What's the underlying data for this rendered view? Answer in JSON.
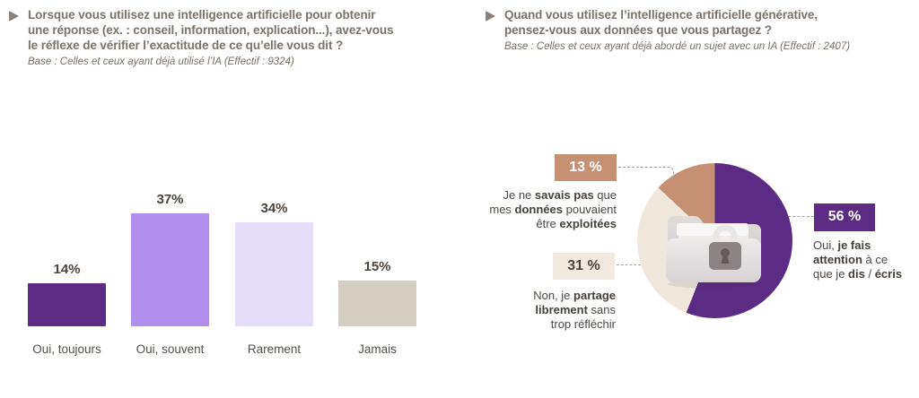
{
  "colors": {
    "purple_dark": "#5C2B84",
    "purple_medium": "#B08FEC",
    "lavender_light": "#E6DDF8",
    "beige_gray": "#D4CDC1",
    "tan": "#C59172",
    "cream": "#EFE7DB",
    "cream_badge": "#F2E9DF",
    "title_text": "#7B7268",
    "value_text": "#4B443E"
  },
  "left_panel": {
    "title": "Lorsque vous utilisez une intelligence artificielle pour obtenir\nune réponse (ex. : conseil, information, explication...), avez-vous\nle réflexe de vérifier l’exactitude de ce qu’elle vous dit  ?",
    "base_note": "Base : Celles et ceux ayant déjà utilisé l’IA (Effectif : 9324)"
  },
  "right_panel": {
    "title": "Quand vous utilisez l’intelligence artificielle générative,\npensez-vous aux données que vous partagez ?",
    "base_note": "Base : Celles et ceux ayant déjà abordé un sujet avec un IA (Effectif : 2407)"
  },
  "chart_data": [
    {
      "type": "bar",
      "title": "Lorsque vous utilisez une intelligence artificielle pour obtenir une réponse (ex. : conseil, information, explication...), avez-vous le réflexe de vérifier l’exactitude de ce qu’elle vous dit ?",
      "base": "Base : Celles et ceux ayant déjà utilisé l’IA (Effectif : 9324)",
      "categories": [
        "Oui, toujours",
        "Oui, souvent",
        "Rarement",
        "Jamais"
      ],
      "values": [
        14,
        37,
        34,
        15
      ],
      "value_labels": [
        "14%",
        "37%",
        "34%",
        "15%"
      ],
      "unit": "percent",
      "colors": [
        "#5C2B84",
        "#B08FEC",
        "#E6DDF8",
        "#D4CDC1"
      ],
      "ylim": [
        0,
        40
      ],
      "grid": false,
      "axes_hidden": true
    },
    {
      "type": "pie",
      "title": "Quand vous utilisez l’intelligence artificielle générative, pensez-vous aux données que vous partagez ?",
      "base": "Base : Celles et ceux ayant déjà abordé un sujet avec un IA (Effectif : 2407)",
      "start_angle_deg": 0,
      "direction": "clockwise",
      "center_icon": "locked-folder",
      "slices": [
        {
          "value": 56,
          "value_label": "56 %",
          "color": "#5C2B84",
          "label": "Oui, je fais attention à ce que je dis / écris",
          "label_segments": [
            {
              "t": "Oui, "
            },
            {
              "t": "je fais",
              "b": true
            },
            {
              "t": "\n"
            },
            {
              "t": "attention",
              "b": true
            },
            {
              "t": " à ce\nque je "
            },
            {
              "t": "dis",
              "b": true
            },
            {
              "t": " / "
            },
            {
              "t": "écris",
              "b": true
            }
          ]
        },
        {
          "value": 31,
          "value_label": "31 %",
          "color": "#EFE7DB",
          "label": "Non, je partage librement sans trop réfléchir",
          "label_segments": [
            {
              "t": "Non, je "
            },
            {
              "t": "partage",
              "b": true
            },
            {
              "t": "\n"
            },
            {
              "t": "librement",
              "b": true
            },
            {
              "t": " sans\ntrop réfléchir"
            }
          ]
        },
        {
          "value": 13,
          "value_label": "13 %",
          "color": "#C59172",
          "label": "Je ne savais pas que mes données pouvaient être exploitées",
          "label_segments": [
            {
              "t": "Je ne "
            },
            {
              "t": "savais pas",
              "b": true
            },
            {
              "t": " que\nmes "
            },
            {
              "t": "données",
              "b": true
            },
            {
              "t": " pouvaient\nêtre "
            },
            {
              "t": "exploitées",
              "b": true
            }
          ]
        }
      ]
    }
  ]
}
